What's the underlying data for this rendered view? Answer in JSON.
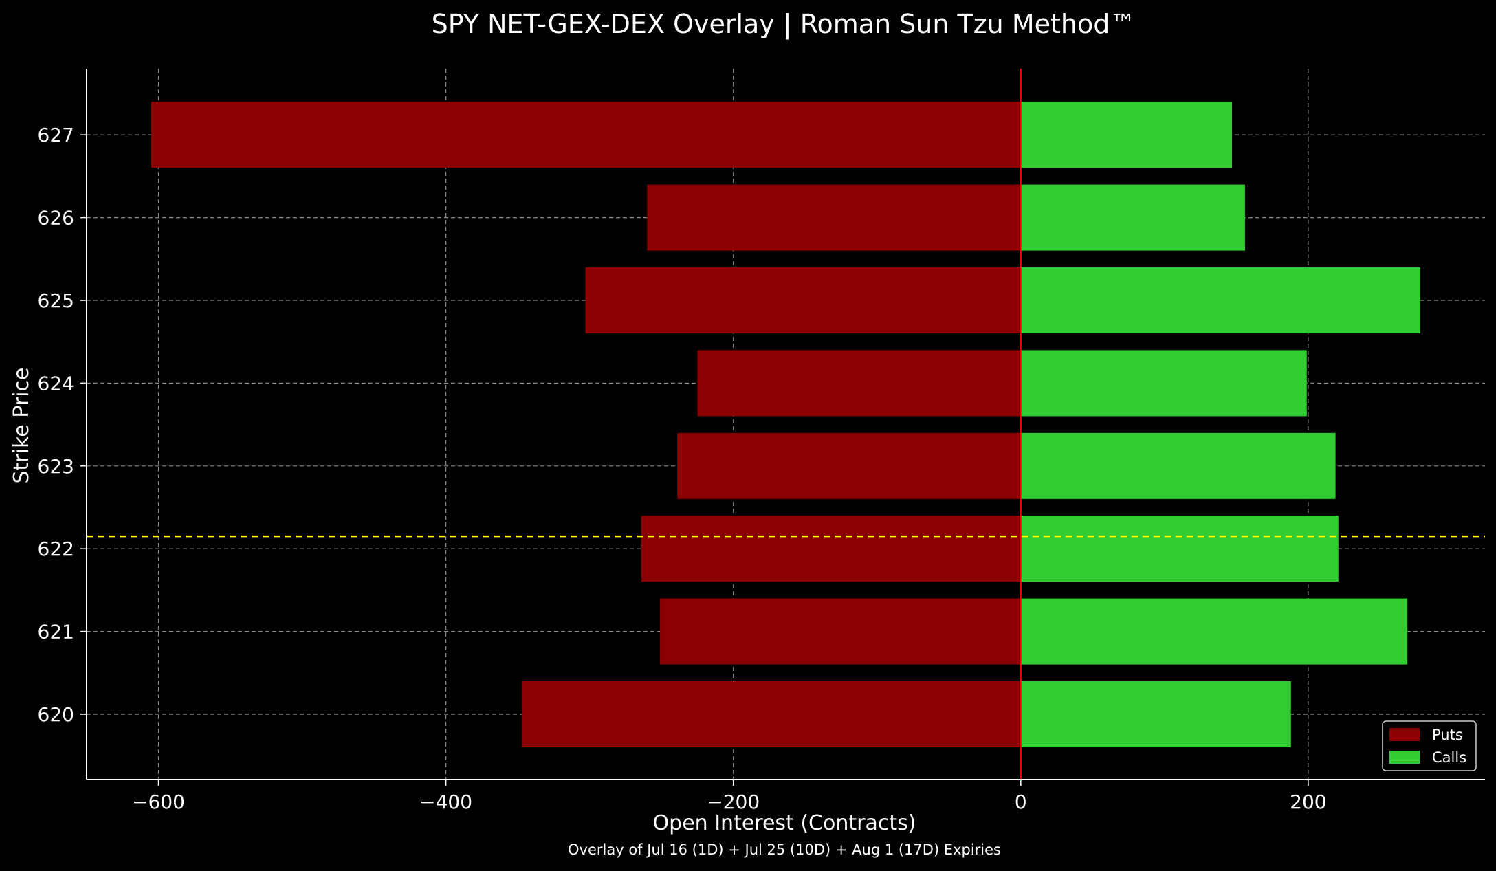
{
  "chart_data": {
    "type": "bar",
    "orientation": "horizontal",
    "title": "SPY NET-GEX-DEX Overlay | Roman Sun Tzu Method™",
    "xlabel": "Open Interest (Contracts)",
    "ylabel": "Strike Price",
    "footnote": "Overlay of Jul 16 (1D) + Jul 25 (10D) + Aug 1 (17D) Expiries",
    "categories": [
      "620",
      "621",
      "622",
      "623",
      "624",
      "625",
      "626",
      "627"
    ],
    "series": [
      {
        "name": "Puts",
        "color": "#8b0000",
        "values": [
          -347,
          -251,
          -264,
          -239,
          -225,
          -303,
          -260,
          -605
        ]
      },
      {
        "name": "Calls",
        "color": "#32cd32",
        "values": [
          188,
          269,
          221,
          219,
          199,
          278,
          156,
          147
        ]
      }
    ],
    "x_ticks": [
      "−600",
      "−400",
      "−200",
      "0",
      "200"
    ],
    "x_tick_values": [
      -600,
      -400,
      -200,
      0,
      200
    ],
    "xlim": [
      -650,
      323
    ],
    "grid": true,
    "zero_line": {
      "x": 0,
      "color": "#ff0000"
    },
    "spot_line": {
      "y": 622.15,
      "color": "#ffff00",
      "style": "dashed"
    },
    "legend": {
      "placement": "bottom-right",
      "entries": [
        "Puts",
        "Calls"
      ]
    }
  }
}
